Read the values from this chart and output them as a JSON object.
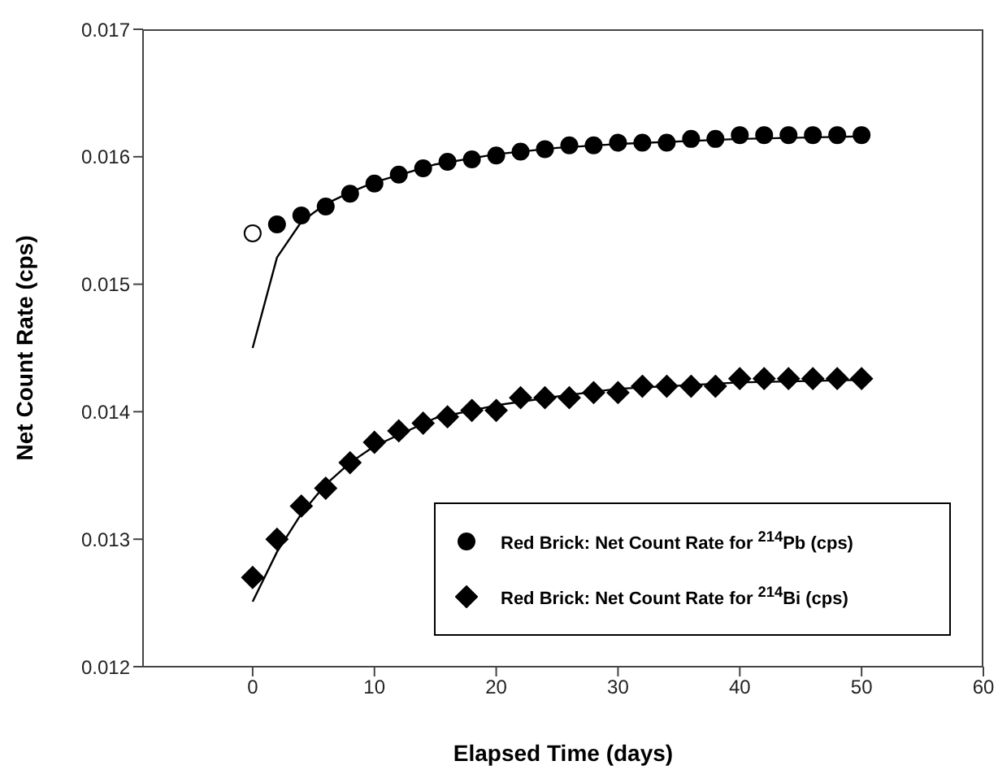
{
  "chart_data": {
    "type": "scatter",
    "xlabel": "Elapsed Time (days)",
    "ylabel": "Net Count Rate  (cps)",
    "xlim": [
      -9,
      60
    ],
    "xticks": [
      0,
      10,
      20,
      30,
      40,
      50,
      60
    ],
    "ylim": [
      0.012,
      0.017
    ],
    "yticks": [
      0.012,
      0.013,
      0.014,
      0.015,
      0.016,
      0.017
    ],
    "grid": false,
    "legend": "bottom right",
    "series": [
      {
        "name": "Red Brick:  Net Count Rate for $^{214}$Pb (cps)",
        "color": "#000000",
        "marker": "circle",
        "x": [
          2,
          4,
          6,
          8,
          10,
          12,
          14,
          16,
          18,
          20,
          22,
          24,
          26,
          28,
          30,
          32,
          34,
          36,
          38,
          40,
          42,
          44,
          46,
          48,
          50
        ],
        "values": [
          0.01547,
          0.01554,
          0.01561,
          0.01571,
          0.01579,
          0.01586,
          0.01591,
          0.01596,
          0.01598,
          0.01601,
          0.01604,
          0.01606,
          0.01609,
          0.01609,
          0.01611,
          0.01611,
          0.01611,
          0.01614,
          0.01614,
          0.01617,
          0.01617,
          0.01617,
          0.01617,
          0.01617,
          0.01617
        ]
      },
      {
        "color": "#ffffff",
        "marker": "circle",
        "x": [
          0
        ],
        "values": [
          0.0154
        ]
      },
      {
        "name": "Red Brick:  Net Count Rate for $^{214}$Bi (cps)",
        "color": "#000000",
        "marker": "diamond",
        "x": [
          0,
          2,
          4,
          6,
          8,
          10,
          12,
          14,
          16,
          18,
          20,
          22,
          24,
          26,
          28,
          30,
          32,
          34,
          36,
          38,
          40,
          42,
          44,
          46,
          48,
          50
        ],
        "values": [
          0.0127,
          0.013,
          0.01326,
          0.0134,
          0.0136,
          0.01376,
          0.01385,
          0.01391,
          0.01396,
          0.01401,
          0.01401,
          0.01411,
          0.01411,
          0.01411,
          0.01415,
          0.01415,
          0.0142,
          0.0142,
          0.0142,
          0.0142,
          0.01426,
          0.01426,
          0.01426,
          0.01426,
          0.01426,
          0.01426
        ]
      },
      {
        "type": "line",
        "color": "#000000",
        "marker": "none",
        "x": [
          0,
          2,
          4,
          6,
          8,
          10,
          15,
          20,
          25,
          30,
          40,
          50
        ],
        "values": [
          0.0145,
          0.01521,
          0.01549,
          0.01563,
          0.01572,
          0.0158,
          0.01594,
          0.01602,
          0.01607,
          0.0161,
          0.01614,
          0.01616
        ]
      },
      {
        "type": "line",
        "color": "#000000",
        "marker": "none",
        "x": [
          0,
          2,
          4,
          6,
          8,
          10,
          15,
          20,
          25,
          30,
          40,
          50
        ],
        "values": [
          0.01251,
          0.0129,
          0.0132,
          0.01343,
          0.0136,
          0.01373,
          0.01395,
          0.01405,
          0.01412,
          0.01418,
          0.01423,
          0.01425
        ]
      }
    ]
  }
}
